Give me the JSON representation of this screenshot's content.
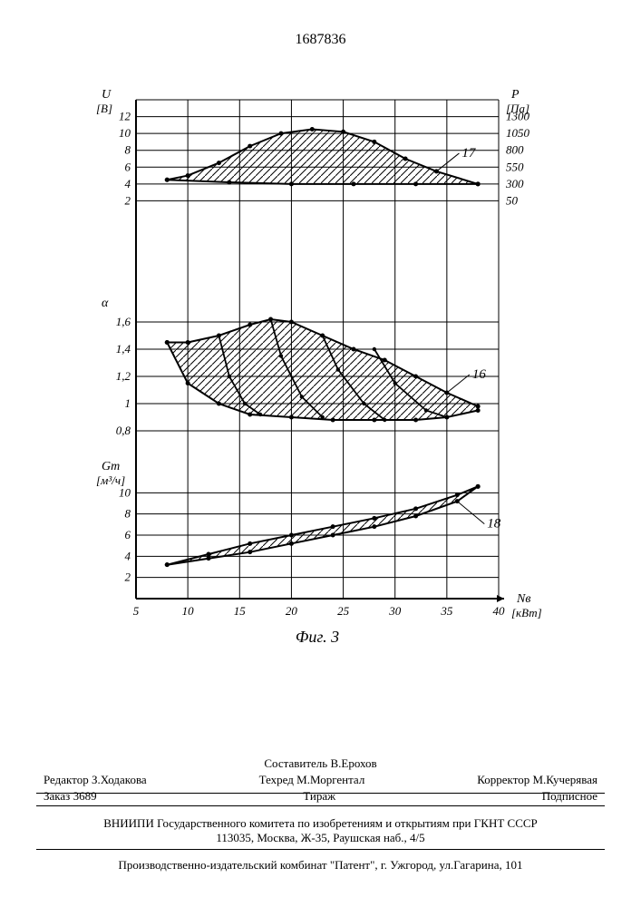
{
  "patent_number": "1687836",
  "figure_caption": "Фиг. 3",
  "chart": {
    "background_color": "#ffffff",
    "stroke_color": "#000000",
    "grid_color": "#000000",
    "hatch_color": "#000000",
    "x": {
      "label": "Nв",
      "unit": "[кВт]",
      "min": 5,
      "max": 40,
      "step": 5,
      "ticks": [
        5,
        10,
        15,
        20,
        25,
        30,
        35,
        40
      ]
    },
    "panel_top": {
      "left_axis": {
        "label": "U",
        "unit": "[В]",
        "ticks": [
          2,
          4,
          6,
          8,
          10,
          12
        ]
      },
      "right_axis": {
        "label": "P",
        "unit": "[Па]",
        "ticks": [
          50,
          300,
          550,
          800,
          1050,
          1300
        ]
      },
      "callout": "17",
      "upper_curve": [
        [
          8,
          4.5
        ],
        [
          10,
          5
        ],
        [
          13,
          6.5
        ],
        [
          16,
          8.5
        ],
        [
          19,
          10
        ],
        [
          22,
          10.5
        ],
        [
          25,
          10.2
        ],
        [
          28,
          9
        ],
        [
          31,
          7
        ],
        [
          34,
          5.5
        ],
        [
          38,
          4
        ]
      ],
      "lower_curve": [
        [
          8,
          4.5
        ],
        [
          14,
          4.2
        ],
        [
          20,
          4.0
        ],
        [
          26,
          4.0
        ],
        [
          32,
          4.0
        ],
        [
          38,
          4
        ]
      ]
    },
    "panel_mid": {
      "left_axis": {
        "label": "α",
        "ticks": [
          0.8,
          1.0,
          1.2,
          1.4,
          1.6
        ]
      },
      "callout": "16",
      "upper_curve": [
        [
          8,
          1.45
        ],
        [
          10,
          1.45
        ],
        [
          13,
          1.5
        ],
        [
          16,
          1.58
        ],
        [
          18,
          1.62
        ],
        [
          20,
          1.6
        ],
        [
          23,
          1.5
        ],
        [
          26,
          1.4
        ],
        [
          29,
          1.32
        ],
        [
          32,
          1.2
        ],
        [
          35,
          1.08
        ],
        [
          38,
          0.98
        ]
      ],
      "lower_curve": [
        [
          8,
          1.45
        ],
        [
          10,
          1.15
        ],
        [
          13,
          1.0
        ],
        [
          16,
          0.92
        ],
        [
          20,
          0.9
        ],
        [
          24,
          0.88
        ],
        [
          28,
          0.88
        ],
        [
          32,
          0.88
        ],
        [
          35,
          0.9
        ],
        [
          38,
          0.95
        ]
      ],
      "inner_curves": [
        [
          [
            13,
            1.5
          ],
          [
            14,
            1.2
          ],
          [
            15.5,
            1.0
          ],
          [
            17,
            0.92
          ]
        ],
        [
          [
            18,
            1.62
          ],
          [
            19,
            1.35
          ],
          [
            21,
            1.05
          ],
          [
            23,
            0.9
          ]
        ],
        [
          [
            23,
            1.5
          ],
          [
            24.5,
            1.25
          ],
          [
            27,
            1.0
          ],
          [
            29,
            0.88
          ]
        ],
        [
          [
            28,
            1.4
          ],
          [
            30,
            1.15
          ],
          [
            33,
            0.95
          ],
          [
            35,
            0.9
          ]
        ]
      ]
    },
    "panel_bot": {
      "left_axis": {
        "label": "Gт",
        "unit": "[м³/ч]",
        "ticks": [
          2,
          4,
          6,
          8,
          10
        ]
      },
      "callout": "18",
      "upper_curve": [
        [
          8,
          3.2
        ],
        [
          12,
          4.2
        ],
        [
          16,
          5.2
        ],
        [
          20,
          6.0
        ],
        [
          24,
          6.8
        ],
        [
          28,
          7.6
        ],
        [
          32,
          8.5
        ],
        [
          36,
          9.8
        ],
        [
          38,
          10.6
        ]
      ],
      "lower_curve": [
        [
          8,
          3.2
        ],
        [
          12,
          3.8
        ],
        [
          16,
          4.4
        ],
        [
          20,
          5.2
        ],
        [
          24,
          6.0
        ],
        [
          28,
          6.8
        ],
        [
          32,
          7.8
        ],
        [
          36,
          9.2
        ],
        [
          38,
          10.6
        ]
      ]
    }
  },
  "footer": {
    "editor_label": "Редактор",
    "editor_name": "З.Ходакова",
    "compiler_label": "Составитель",
    "compiler_name": "В.Ерохов",
    "techred_label": "Техред",
    "techred_name": "М.Моргентал",
    "corrector_label": "Корректор",
    "corrector_name": "М.Кучерявая",
    "order_label": "Заказ",
    "order_number": "3689",
    "tirazh": "Тираж",
    "subscription": "Подписное",
    "vniipi_line1": "ВНИИПИ Государственного комитета по изобретениям и открытиям при ГКНТ СССР",
    "vniipi_line2": "113035, Москва, Ж-35, Раушская наб., 4/5",
    "prod": "Производственно-издательский комбинат \"Патент\", г. Ужгород, ул.Гагарина, 101"
  }
}
